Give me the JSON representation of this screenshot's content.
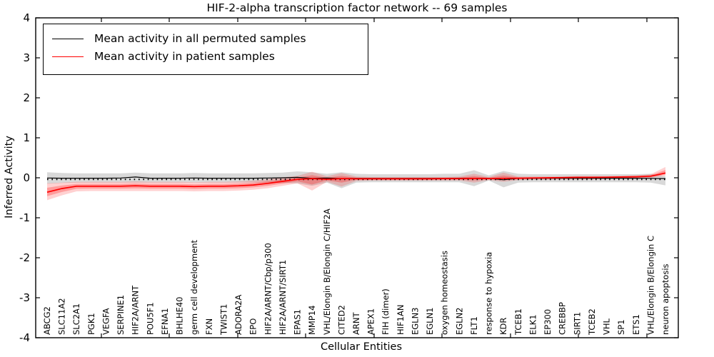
{
  "chart_data": {
    "type": "line",
    "title": "HIF-2-alpha transcription factor network -- 69 samples",
    "xlabel": "Cellular Entities",
    "ylabel": "Inferred Activity",
    "ylim": [
      -4,
      4
    ],
    "yticks": [
      "-4",
      "-3",
      "-2",
      "-1",
      "0",
      "1",
      "2",
      "3",
      "4"
    ],
    "grid": false,
    "legend_position": "upper left",
    "categories": [
      "ABCG2",
      "SLC11A2",
      "SLC2A1",
      "PGK1",
      "VEGFA",
      "SERPINE1",
      "HIF2A/ARNT",
      "POU5F1",
      "EFNA1",
      "BHLHE40",
      "germ cell development",
      "FXN",
      "TWIST1",
      "ADORA2A",
      "EPO",
      "HIF2A/ARNT/Cbp/p300",
      "HIF2A/ARNT/SIRT1",
      "EPAS1",
      "MMP14",
      "VHL/Elongin B/Elongin C/HIF2A",
      "CITED2",
      "ARNT",
      "APEX1",
      "FIH (dimer)",
      "HIF1AN",
      "EGLN3",
      "EGLN1",
      "oxygen homeostasis",
      "EGLN2",
      "FLT1",
      "response to hypoxia",
      "KDR",
      "TCEB1",
      "ELK1",
      "EP300",
      "CREBBP",
      "SIRT1",
      "TCEB2",
      "VHL",
      "SP1",
      "ETS1",
      "VHL/Elongin B/Elongin C",
      "neuron apoptosis"
    ],
    "series": [
      {
        "name": "Mean activity in all permuted samples",
        "color": "#000000",
        "values": [
          -0.005,
          -0.01,
          -0.01,
          -0.01,
          -0.01,
          -0.005,
          0.02,
          -0.01,
          -0.01,
          -0.01,
          -0.005,
          -0.01,
          -0.01,
          -0.01,
          -0.01,
          -0.005,
          0.0,
          0.01,
          -0.015,
          -0.005,
          -0.02,
          -0.015,
          -0.015,
          -0.015,
          -0.015,
          -0.015,
          -0.015,
          -0.015,
          -0.01,
          -0.01,
          -0.015,
          -0.05,
          -0.015,
          -0.015,
          -0.01,
          -0.01,
          -0.01,
          -0.01,
          -0.01,
          -0.01,
          -0.01,
          -0.015,
          -0.02
        ],
        "band": {
          "upper": [
            0.14,
            0.12,
            0.11,
            0.11,
            0.11,
            0.11,
            0.13,
            0.11,
            0.11,
            0.11,
            0.12,
            0.11,
            0.11,
            0.11,
            0.11,
            0.12,
            0.13,
            0.16,
            0.14,
            0.1,
            0.14,
            0.1,
            0.09,
            0.09,
            0.09,
            0.09,
            0.09,
            0.1,
            0.1,
            0.19,
            0.06,
            0.17,
            0.1,
            0.09,
            0.09,
            0.09,
            0.09,
            0.09,
            0.09,
            0.09,
            0.09,
            0.1,
            0.04
          ],
          "lower": [
            -0.15,
            -0.13,
            -0.12,
            -0.12,
            -0.12,
            -0.12,
            -0.12,
            -0.12,
            -0.12,
            -0.12,
            -0.12,
            -0.12,
            -0.12,
            -0.12,
            -0.12,
            -0.12,
            -0.13,
            -0.14,
            -0.2,
            -0.12,
            -0.26,
            -0.12,
            -0.11,
            -0.11,
            -0.11,
            -0.11,
            -0.11,
            -0.11,
            -0.11,
            -0.21,
            -0.07,
            -0.24,
            -0.12,
            -0.11,
            -0.11,
            -0.11,
            -0.11,
            -0.11,
            -0.11,
            -0.11,
            -0.11,
            -0.12,
            -0.19
          ],
          "color": "#787878"
        }
      },
      {
        "name": "Mean activity in patient samples",
        "color": "#ff0000",
        "values": [
          -0.36,
          -0.27,
          -0.21,
          -0.21,
          -0.21,
          -0.21,
          -0.2,
          -0.21,
          -0.21,
          -0.21,
          -0.22,
          -0.21,
          -0.21,
          -0.2,
          -0.18,
          -0.14,
          -0.09,
          -0.04,
          -0.02,
          -0.035,
          -0.02,
          -0.025,
          -0.025,
          -0.025,
          -0.025,
          -0.025,
          -0.025,
          -0.02,
          -0.02,
          -0.015,
          -0.02,
          -0.015,
          -0.01,
          -0.005,
          0.0,
          0.005,
          0.01,
          0.01,
          0.015,
          0.02,
          0.025,
          0.04,
          0.12
        ],
        "band": {
          "upper": [
            -0.14,
            -0.12,
            -0.1,
            -0.1,
            -0.1,
            -0.1,
            -0.09,
            -0.1,
            -0.1,
            -0.1,
            -0.11,
            -0.1,
            -0.1,
            -0.09,
            -0.07,
            -0.03,
            0.01,
            0.05,
            0.15,
            0.04,
            0.12,
            0.03,
            0.02,
            0.02,
            0.02,
            0.02,
            0.02,
            0.02,
            0.03,
            0.1,
            0.02,
            0.13,
            0.03,
            0.03,
            0.03,
            0.03,
            0.04,
            0.04,
            0.04,
            0.05,
            0.06,
            0.09,
            0.27
          ],
          "lower": [
            -0.56,
            -0.44,
            -0.34,
            -0.33,
            -0.33,
            -0.33,
            -0.33,
            -0.33,
            -0.33,
            -0.33,
            -0.34,
            -0.33,
            -0.33,
            -0.32,
            -0.3,
            -0.26,
            -0.2,
            -0.14,
            -0.32,
            -0.1,
            -0.22,
            -0.08,
            -0.07,
            -0.07,
            -0.07,
            -0.07,
            -0.07,
            -0.07,
            -0.07,
            -0.12,
            -0.06,
            -0.1,
            -0.06,
            -0.05,
            -0.05,
            -0.04,
            -0.04,
            -0.04,
            -0.03,
            -0.02,
            -0.02,
            0.0,
            0.05
          ],
          "color": "#ff0000"
        }
      }
    ],
    "reference_line": {
      "value": -0.04,
      "style": "dotted",
      "color": "#000000"
    }
  },
  "legend": {
    "items": [
      {
        "label": "Mean activity in all permuted samples",
        "color": "#000000"
      },
      {
        "label": "Mean activity in patient samples",
        "color": "#ff0000"
      }
    ]
  }
}
